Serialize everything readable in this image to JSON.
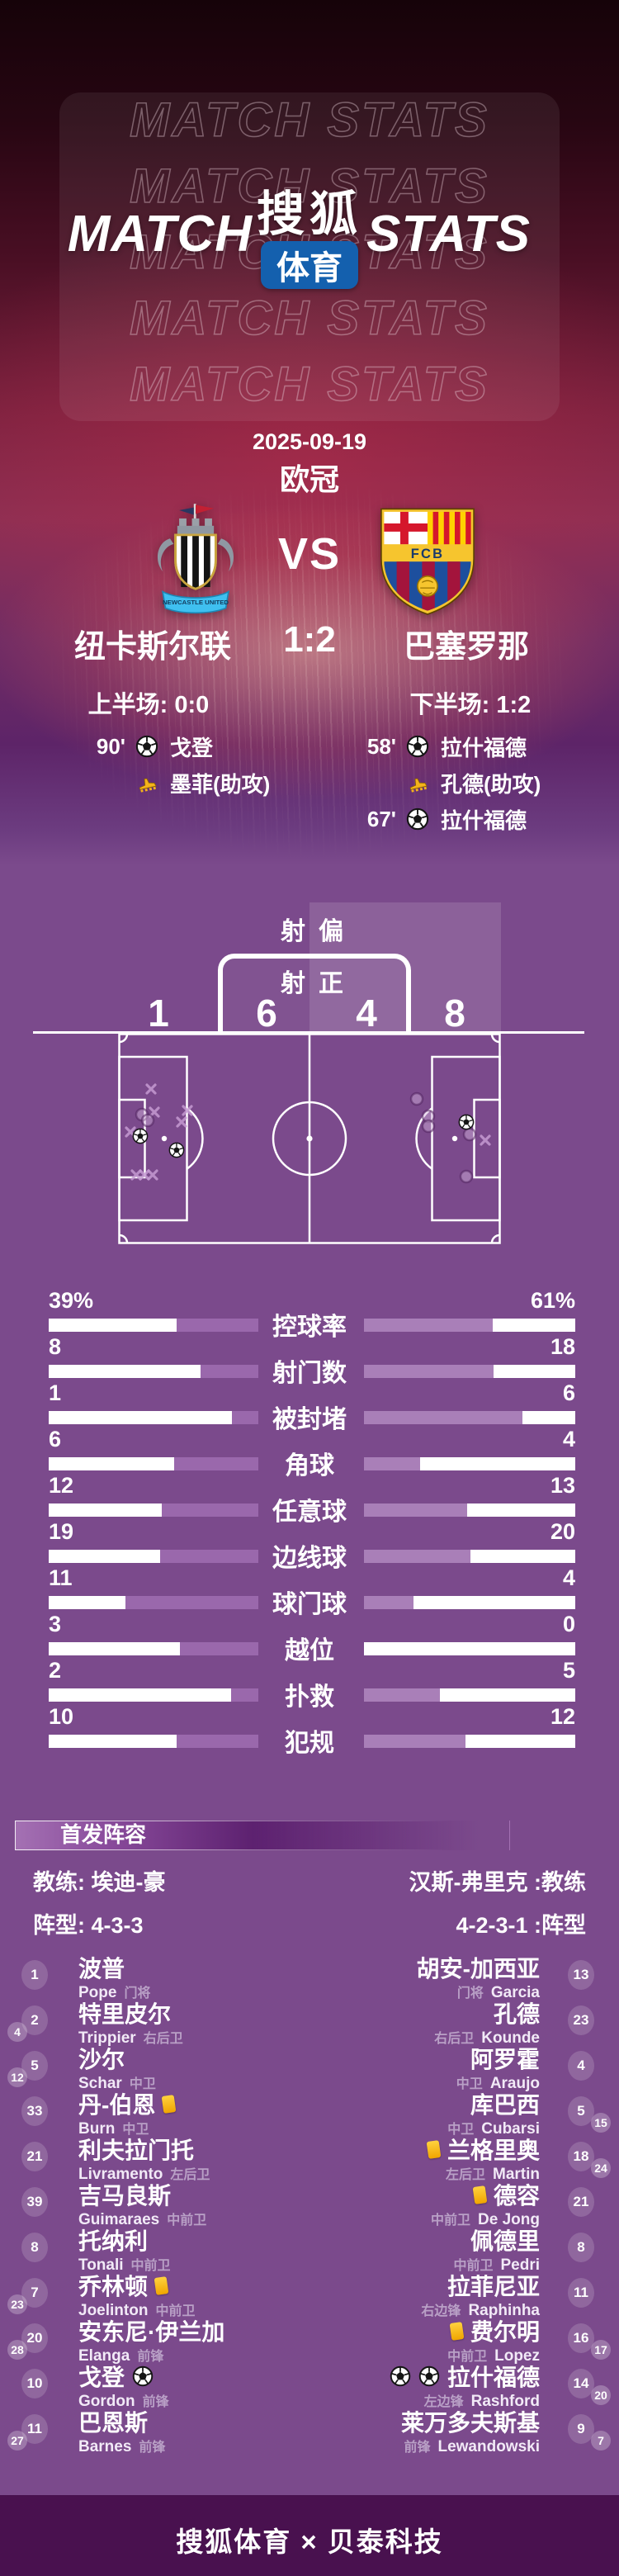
{
  "hero": {
    "watermark": "MATCH STATS",
    "title_left": "MATCH",
    "title_right": "STATS",
    "logo_script": "搜狐",
    "logo_badge": "体育",
    "logo_badge_color": "#1460ae",
    "date": "2025-09-19",
    "league": "欧冠",
    "vs": "VS",
    "home_name": "纽卡斯尔联",
    "away_name": "巴塞罗那",
    "score": "1:2",
    "half1": "上半场: 0:0",
    "half2": "下半场: 1:2",
    "home_events": [
      {
        "minute": "90'",
        "icon": "goal",
        "player": "戈登"
      },
      {
        "minute": "",
        "icon": "assist",
        "player": "墨菲(助攻)"
      }
    ],
    "away_events": [
      {
        "minute": "58'",
        "icon": "goal",
        "player": "拉什福德"
      },
      {
        "minute": "",
        "icon": "assist",
        "player": "孔德(助攻)"
      },
      {
        "minute": "67'",
        "icon": "goal",
        "player": "拉什福德"
      }
    ]
  },
  "shot_map": {
    "off_left_char": "射",
    "off_right_char": "偏",
    "on_left_char": "射",
    "on_right_char": "正",
    "home_off": 1,
    "home_on": 6,
    "away_on": 4,
    "away_off": 8,
    "markers": {
      "away": [
        {
          "t": "x",
          "x": 40,
          "y": 68
        },
        {
          "t": "x",
          "x": 44,
          "y": 96
        },
        {
          "t": "x",
          "x": 84,
          "y": 94
        },
        {
          "t": "x",
          "x": 77,
          "y": 108
        },
        {
          "t": "x",
          "x": 15,
          "y": 120
        },
        {
          "t": "x",
          "x": 22,
          "y": 172
        },
        {
          "t": "x",
          "x": 32,
          "y": 172
        },
        {
          "t": "x",
          "x": 42,
          "y": 172
        },
        {
          "t": "o",
          "x": 29,
          "y": 99
        },
        {
          "t": "o",
          "x": 36,
          "y": 106
        },
        {
          "t": "b",
          "x": 27,
          "y": 125
        },
        {
          "t": "b",
          "x": 71,
          "y": 142
        }
      ],
      "home": [
        {
          "t": "o",
          "x": 362,
          "y": 80
        },
        {
          "t": "o",
          "x": 376,
          "y": 101
        },
        {
          "t": "o",
          "x": 376,
          "y": 113
        },
        {
          "t": "o",
          "x": 426,
          "y": 123
        },
        {
          "t": "o",
          "x": 422,
          "y": 174
        },
        {
          "t": "b",
          "x": 422,
          "y": 108
        },
        {
          "t": "x",
          "x": 445,
          "y": 130
        }
      ]
    }
  },
  "chart_data": {
    "type": "bar",
    "layout": "mirrored-horizontal",
    "categories": [
      "控球率",
      "射门数",
      "被封堵",
      "角球",
      "任意球",
      "边线球",
      "球门球",
      "越位",
      "扑救",
      "犯规"
    ],
    "series": [
      {
        "name": "纽卡斯尔联",
        "values": [
          39,
          8,
          1,
          6,
          12,
          19,
          11,
          3,
          2,
          10
        ]
      },
      {
        "name": "巴塞罗那",
        "values": [
          61,
          18,
          6,
          4,
          13,
          20,
          4,
          0,
          5,
          12
        ]
      }
    ],
    "rows": [
      {
        "key": "possession",
        "label": "控球率",
        "home": "39%",
        "away": "61%",
        "home_pct": 39,
        "away_pct": 61
      },
      {
        "key": "shots",
        "label": "射门数",
        "home": "8",
        "away": "18",
        "home_pct": 27.5,
        "away_pct": 61.5
      },
      {
        "key": "blocked",
        "label": "被封堵",
        "home": "1",
        "away": "6",
        "home_pct": 12.5,
        "away_pct": 75
      },
      {
        "key": "corners",
        "label": "角球",
        "home": "6",
        "away": "4",
        "home_pct": 40,
        "away_pct": 26.5
      },
      {
        "key": "free-kicks",
        "label": "任意球",
        "home": "12",
        "away": "13",
        "home_pct": 46,
        "away_pct": 49
      },
      {
        "key": "throw-ins",
        "label": "边线球",
        "home": "19",
        "away": "20",
        "home_pct": 47,
        "away_pct": 50.5
      },
      {
        "key": "goal-kicks",
        "label": "球门球",
        "home": "11",
        "away": "4",
        "home_pct": 63.5,
        "away_pct": 23.5
      },
      {
        "key": "offsides",
        "label": "越位",
        "home": "3",
        "away": "0",
        "home_pct": 37.5,
        "away_pct": 0
      },
      {
        "key": "saves",
        "label": "扑救",
        "home": "2",
        "away": "5",
        "home_pct": 13,
        "away_pct": 36
      },
      {
        "key": "fouls",
        "label": "犯规",
        "home": "10",
        "away": "12",
        "home_pct": 39,
        "away_pct": 48
      }
    ]
  },
  "lineup": {
    "section_title": "首发阵容",
    "home_coach": "教练: 埃迪-豪",
    "away_coach": "汉斯-弗里克 :教练",
    "home_formation": "阵型: 4-3-3",
    "away_formation": "4-2-3-1 :阵型",
    "home": [
      {
        "num": 1,
        "name": "波普",
        "en": "Pope",
        "pos": "门将"
      },
      {
        "num": 2,
        "name": "特里皮尔",
        "en": "Trippier",
        "pos": "右后卫",
        "sub": 4
      },
      {
        "num": 5,
        "name": "沙尔",
        "en": "Schar",
        "pos": "中卫",
        "sub": 12
      },
      {
        "num": 33,
        "name": "丹-伯恩",
        "en": "Burn",
        "pos": "中卫",
        "yellow": 1
      },
      {
        "num": 21,
        "name": "利夫拉门托",
        "en": "Livramento",
        "pos": "左后卫"
      },
      {
        "num": 39,
        "name": "吉马良斯",
        "en": "Guimaraes",
        "pos": "中前卫"
      },
      {
        "num": 8,
        "name": "托纳利",
        "en": "Tonali",
        "pos": "中前卫"
      },
      {
        "num": 7,
        "name": "乔林顿",
        "en": "Joelinton",
        "pos": "中前卫",
        "yellow": 1,
        "sub": 23
      },
      {
        "num": 20,
        "name": "安东尼·伊兰加",
        "en": "Elanga",
        "pos": "前锋",
        "sub": 28
      },
      {
        "num": 10,
        "name": "戈登",
        "en": "Gordon",
        "pos": "前锋",
        "goals": 1
      },
      {
        "num": 11,
        "name": "巴恩斯",
        "en": "Barnes",
        "pos": "前锋",
        "sub": 27
      }
    ],
    "away": [
      {
        "num": 13,
        "name": "胡安-加西亚",
        "en": "Garcia",
        "pos": "门将"
      },
      {
        "num": 23,
        "name": "孔德",
        "en": "Kounde",
        "pos": "右后卫"
      },
      {
        "num": 4,
        "name": "阿罗霍",
        "en": "Araujo",
        "pos": "中卫"
      },
      {
        "num": 5,
        "name": "库巴西",
        "en": "Cubarsi",
        "pos": "中卫",
        "sub": 15
      },
      {
        "num": 18,
        "name": "兰格里奥",
        "en": "Martin",
        "pos": "左后卫",
        "yellow": 1,
        "sub": 24
      },
      {
        "num": 21,
        "name": "德容",
        "en": "De Jong",
        "pos": "中前卫",
        "yellow": 1
      },
      {
        "num": 8,
        "name": "佩德里",
        "en": "Pedri",
        "pos": "中前卫"
      },
      {
        "num": 11,
        "name": "拉菲尼亚",
        "en": "Raphinha",
        "pos": "右边锋"
      },
      {
        "num": 16,
        "name": "费尔明",
        "en": "Lopez",
        "pos": "中前卫",
        "yellow": 1,
        "sub": 17
      },
      {
        "num": 14,
        "name": "拉什福德",
        "en": "Rashford",
        "pos": "左边锋",
        "goals": 2,
        "sub": 20
      },
      {
        "num": 9,
        "name": "莱万多夫斯基",
        "en": "Lewandowski",
        "pos": "前锋",
        "sub": 7
      }
    ]
  },
  "footer": {
    "text": "搜狐体育 × 贝泰科技"
  }
}
